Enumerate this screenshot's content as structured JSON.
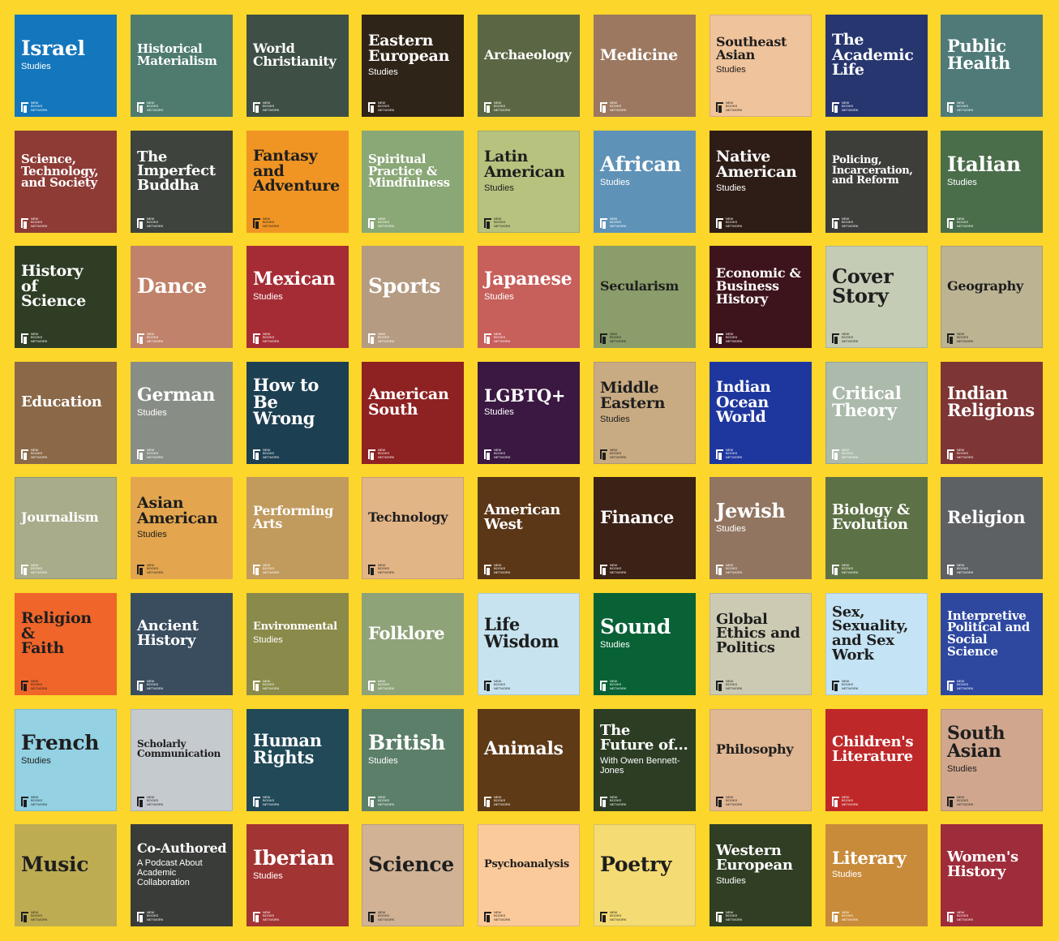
{
  "logo": {
    "line1": "New",
    "line2": "Books",
    "line3": "Network"
  },
  "tiles": [
    {
      "title": "Israel",
      "subtitle": "Studies",
      "bg": "#1476BC",
      "fg": "#FFFFFF",
      "size": 25
    },
    {
      "title": "Historical\nMaterialism",
      "subtitle": "",
      "bg": "#4E7B6E",
      "fg": "#FFFFFF",
      "size": 15
    },
    {
      "title": "World\nChristianity",
      "subtitle": "",
      "bg": "#3E4F45",
      "fg": "#FFFFFF",
      "size": 16
    },
    {
      "title": "Eastern\nEuropean",
      "subtitle": "Studies",
      "bg": "#2F2418",
      "fg": "#FFFFFF",
      "size": 19
    },
    {
      "title": "Archaeology",
      "subtitle": "",
      "bg": "#5B6744",
      "fg": "#FFFFFF",
      "size": 16
    },
    {
      "title": "Medicine",
      "subtitle": "",
      "bg": "#9C7860",
      "fg": "#FFFFFF",
      "size": 19
    },
    {
      "title": "Southeast\nAsian",
      "subtitle": "Studies",
      "bg": "#EFC39B",
      "fg": "#1E1E1E",
      "size": 16
    },
    {
      "title": "The\nAcademic\nLife",
      "subtitle": "",
      "bg": "#27366F",
      "fg": "#FFFFFF",
      "size": 19
    },
    {
      "title": "Public\nHealth",
      "subtitle": "",
      "bg": "#4F7A78",
      "fg": "#FFFFFF",
      "size": 21
    },
    {
      "title": "Science,\nTechnology,\nand Society",
      "subtitle": "",
      "bg": "#8E3B36",
      "fg": "#FFFFFF",
      "size": 15
    },
    {
      "title": "The\nImperfect\nBuddha",
      "subtitle": "",
      "bg": "#3E433D",
      "fg": "#FFFFFF",
      "size": 18
    },
    {
      "title": "Fantasy\nand\nAdventure",
      "subtitle": "",
      "bg": "#F09424",
      "fg": "#1E1E1E",
      "size": 19
    },
    {
      "title": "Spiritual\nPractice &\nMindfulness",
      "subtitle": "",
      "bg": "#8AA776",
      "fg": "#FFFFFF",
      "size": 15
    },
    {
      "title": "Latin\nAmerican",
      "subtitle": "Studies",
      "bg": "#B6C27E",
      "fg": "#1E1E1E",
      "size": 19
    },
    {
      "title": "African",
      "subtitle": "Studies",
      "bg": "#5F92B7",
      "fg": "#FFFFFF",
      "size": 25
    },
    {
      "title": "Native\nAmerican",
      "subtitle": "Studies",
      "bg": "#2E1D16",
      "fg": "#FFFFFF",
      "size": 19
    },
    {
      "title": "Policing,\nIncarceration,\nand Reform",
      "subtitle": "",
      "bg": "#3D3D3A",
      "fg": "#FFFFFF",
      "size": 13
    },
    {
      "title": "Italian",
      "subtitle": "Studies",
      "bg": "#4A6E4A",
      "fg": "#FFFFFF",
      "size": 25
    },
    {
      "title": "History\nof\nScience",
      "subtitle": "",
      "bg": "#2F3D25",
      "fg": "#FFFFFF",
      "size": 19
    },
    {
      "title": "Dance",
      "subtitle": "",
      "bg": "#C0826A",
      "fg": "#FFFFFF",
      "size": 25
    },
    {
      "title": "Mexican",
      "subtitle": "Studies",
      "bg": "#A52C35",
      "fg": "#FFFFFF",
      "size": 22
    },
    {
      "title": "Sports",
      "subtitle": "",
      "bg": "#B59B81",
      "fg": "#FFFFFF",
      "size": 25
    },
    {
      "title": "Japanese",
      "subtitle": "Studies",
      "bg": "#C75F5B",
      "fg": "#FFFFFF",
      "size": 22
    },
    {
      "title": "Secularism",
      "subtitle": "",
      "bg": "#8A9D6A",
      "fg": "#1E1E1E",
      "size": 16
    },
    {
      "title": "Economic &\nBusiness\nHistory",
      "subtitle": "",
      "bg": "#3E141C",
      "fg": "#FFFFFF",
      "size": 16
    },
    {
      "title": "Cover\nStory",
      "subtitle": "",
      "bg": "#C5CCB5",
      "fg": "#1E1E1E",
      "size": 24
    },
    {
      "title": "Geography",
      "subtitle": "",
      "bg": "#BCB393",
      "fg": "#1E1E1E",
      "size": 16
    },
    {
      "title": "Education",
      "subtitle": "",
      "bg": "#8A6848",
      "fg": "#FFFFFF",
      "size": 18
    },
    {
      "title": "German",
      "subtitle": "Studies",
      "bg": "#888E86",
      "fg": "#FFFFFF",
      "size": 22
    },
    {
      "title": "How to\nBe\nWrong",
      "subtitle": "",
      "bg": "#1D3F52",
      "fg": "#FFFFFF",
      "size": 21
    },
    {
      "title": "American\nSouth",
      "subtitle": "",
      "bg": "#8E2122",
      "fg": "#FFFFFF",
      "size": 19
    },
    {
      "title": "LGBTQ+",
      "subtitle": "Studies",
      "bg": "#3B1842",
      "fg": "#FFFFFF",
      "size": 21
    },
    {
      "title": "Middle\nEastern",
      "subtitle": "Studies",
      "bg": "#C9AB83",
      "fg": "#1E1E1E",
      "size": 19
    },
    {
      "title": "Indian\nOcean\nWorld",
      "subtitle": "",
      "bg": "#1E379E",
      "fg": "#FFFFFF",
      "size": 19
    },
    {
      "title": "Critical\nTheory",
      "subtitle": "",
      "bg": "#ABBAAB",
      "fg": "#FFFFFF",
      "size": 21
    },
    {
      "title": "Indian\nReligions",
      "subtitle": "",
      "bg": "#7D3635",
      "fg": "#FFFFFF",
      "size": 21
    },
    {
      "title": "Journalism",
      "subtitle": "",
      "bg": "#A8AC8A",
      "fg": "#FFFFFF",
      "size": 16
    },
    {
      "title": "Asian\nAmerican",
      "subtitle": "Studies",
      "bg": "#E3A64E",
      "fg": "#1E1E1E",
      "size": 19
    },
    {
      "title": "Performing\nArts",
      "subtitle": "",
      "bg": "#C19A5E",
      "fg": "#FFFFFF",
      "size": 16
    },
    {
      "title": "Technology",
      "subtitle": "",
      "bg": "#E2B587",
      "fg": "#1E1E1E",
      "size": 16
    },
    {
      "title": "American\nWest",
      "subtitle": "",
      "bg": "#5B3718",
      "fg": "#FFFFFF",
      "size": 18
    },
    {
      "title": "Finance",
      "subtitle": "",
      "bg": "#3B2116",
      "fg": "#FFFFFF",
      "size": 21
    },
    {
      "title": "Jewish",
      "subtitle": "Studies",
      "bg": "#917560",
      "fg": "#FFFFFF",
      "size": 24
    },
    {
      "title": "Biology &\nEvolution",
      "subtitle": "",
      "bg": "#5D7146",
      "fg": "#FFFFFF",
      "size": 18
    },
    {
      "title": "Religion",
      "subtitle": "",
      "bg": "#5E6164",
      "fg": "#FFFFFF",
      "size": 21
    },
    {
      "title": "Religion\n&\nFaith",
      "subtitle": "",
      "bg": "#F0652A",
      "fg": "#1E1E1E",
      "size": 19
    },
    {
      "title": "Ancient\nHistory",
      "subtitle": "",
      "bg": "#3A4D5F",
      "fg": "#FFFFFF",
      "size": 18
    },
    {
      "title": "Environmental",
      "subtitle": "Studies",
      "bg": "#8A8A4A",
      "fg": "#FFFFFF",
      "size": 13
    },
    {
      "title": "Folklore",
      "subtitle": "",
      "bg": "#8FA379",
      "fg": "#FFFFFF",
      "size": 21
    },
    {
      "title": "Life\nWisdom",
      "subtitle": "",
      "bg": "#C6E3EF",
      "fg": "#1E1E1E",
      "size": 21
    },
    {
      "title": "Sound",
      "subtitle": "Studies",
      "bg": "#086236",
      "fg": "#FFFFFF",
      "size": 25
    },
    {
      "title": "Global\nEthics and\nPolitics",
      "subtitle": "",
      "bg": "#CCCAB3",
      "fg": "#1E1E1E",
      "size": 18
    },
    {
      "title": "Sex,\nSexuality,\nand Sex\nWork",
      "subtitle": "",
      "bg": "#C4E3F4",
      "fg": "#1E1E1E",
      "size": 18
    },
    {
      "title": "Interpretive\nPolitical and\nSocial\nScience",
      "subtitle": "",
      "bg": "#2E48A0",
      "fg": "#FFFFFF",
      "size": 15
    },
    {
      "title": "French",
      "subtitle": "Studies",
      "bg": "#93D1E3",
      "fg": "#1E1E1E",
      "size": 25
    },
    {
      "title": "Scholarly\nCommunication",
      "subtitle": "",
      "bg": "#C5CACF",
      "fg": "#1E1E1E",
      "size": 12
    },
    {
      "title": "Human\nRights",
      "subtitle": "",
      "bg": "#214958",
      "fg": "#FFFFFF",
      "size": 21
    },
    {
      "title": "British",
      "subtitle": "Studies",
      "bg": "#5C7F69",
      "fg": "#FFFFFF",
      "size": 25
    },
    {
      "title": "Animals",
      "subtitle": "",
      "bg": "#5E3A16",
      "fg": "#FFFFFF",
      "size": 22
    },
    {
      "title": "The\nFuture of...",
      "subtitle": "With Owen Bennett-\nJones",
      "bg": "#2C3D24",
      "fg": "#FFFFFF",
      "size": 18
    },
    {
      "title": "Philosophy",
      "subtitle": "",
      "bg": "#E1B894",
      "fg": "#1E1E1E",
      "size": 16
    },
    {
      "title": "Children's\nLiterature",
      "subtitle": "",
      "bg": "#BF2829",
      "fg": "#FFFFFF",
      "size": 18
    },
    {
      "title": "South\nAsian",
      "subtitle": "Studies",
      "bg": "#D0A78E",
      "fg": "#1E1E1E",
      "size": 22
    },
    {
      "title": "Music",
      "subtitle": "",
      "bg": "#BEAC53",
      "fg": "#1E1E1E",
      "size": 25
    },
    {
      "title": "Co-Authored",
      "subtitle": "A Podcast About\nAcademic Collaboration",
      "bg": "#3A3C3A",
      "fg": "#FFFFFF",
      "size": 16
    },
    {
      "title": "Iberian",
      "subtitle": "Studies",
      "bg": "#A23434",
      "fg": "#FFFFFF",
      "size": 25
    },
    {
      "title": "Science",
      "subtitle": "",
      "bg": "#D1B295",
      "fg": "#1E1E1E",
      "size": 25
    },
    {
      "title": "Psychoanalysis",
      "subtitle": "",
      "bg": "#FBCA9A",
      "fg": "#1E1E1E",
      "size": 13
    },
    {
      "title": "Poetry",
      "subtitle": "",
      "bg": "#F4DB74",
      "fg": "#1E1E1E",
      "size": 25
    },
    {
      "title": "Western\nEuropean",
      "subtitle": "Studies",
      "bg": "#303E24",
      "fg": "#FFFFFF",
      "size": 18
    },
    {
      "title": "Literary",
      "subtitle": "Studies",
      "bg": "#C88B3A",
      "fg": "#FFFFFF",
      "size": 21
    },
    {
      "title": "Women's\nHistory",
      "subtitle": "",
      "bg": "#9E2C3A",
      "fg": "#FFFFFF",
      "size": 18
    }
  ]
}
